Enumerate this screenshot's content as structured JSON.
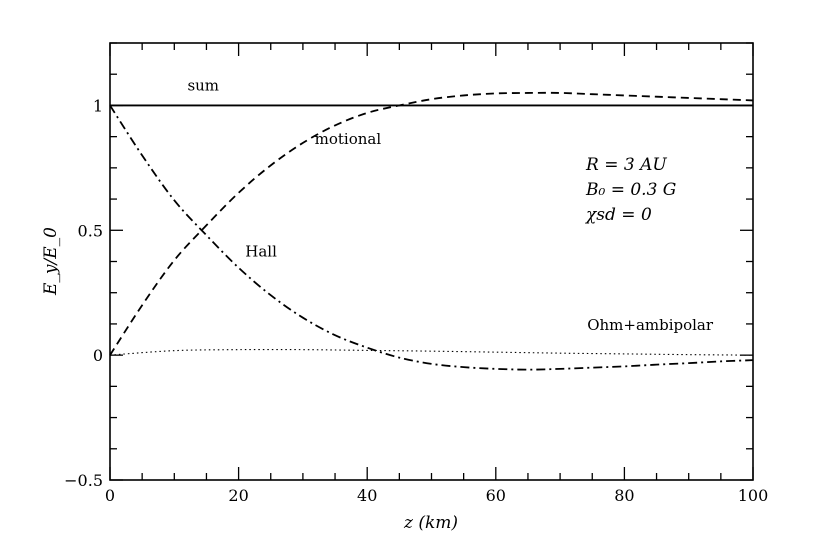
{
  "chart_data": {
    "type": "line",
    "xlabel": "z (km)",
    "ylabel": "E_y/E_0",
    "xlim": [
      0,
      100
    ],
    "ylim": [
      -0.5,
      1.25
    ],
    "x_ticks": [
      0,
      20,
      40,
      60,
      80,
      100
    ],
    "y_ticks": [
      -0.5,
      0,
      0.5,
      1
    ],
    "x_tick_labels": [
      "0",
      "20",
      "40",
      "60",
      "80",
      "100"
    ],
    "y_tick_labels": [
      "−0.5",
      "0",
      "0.5",
      "1"
    ],
    "grid": false,
    "legend": "none",
    "series": [
      {
        "name": "sum",
        "style": "solid",
        "x": [
          0,
          10,
          20,
          30,
          40,
          50,
          60,
          70,
          80,
          90,
          100
        ],
        "y": [
          1.0,
          1.0,
          1.0,
          1.0,
          1.0,
          1.0,
          1.0,
          1.0,
          1.0,
          1.0,
          1.0
        ]
      },
      {
        "name": "motional",
        "style": "dashed",
        "x": [
          0,
          5,
          10,
          15,
          20,
          25,
          30,
          35,
          40,
          45,
          50,
          55,
          60,
          65,
          70,
          75,
          80,
          85,
          90,
          95,
          100
        ],
        "y": [
          0.0,
          0.2,
          0.38,
          0.52,
          0.65,
          0.76,
          0.85,
          0.92,
          0.97,
          1.0,
          1.025,
          1.04,
          1.048,
          1.05,
          1.05,
          1.045,
          1.04,
          1.035,
          1.03,
          1.025,
          1.02
        ]
      },
      {
        "name": "Hall",
        "style": "dashdot",
        "x": [
          0,
          5,
          10,
          15,
          20,
          25,
          30,
          35,
          40,
          45,
          50,
          55,
          60,
          65,
          70,
          75,
          80,
          85,
          90,
          95,
          100
        ],
        "y": [
          1.0,
          0.8,
          0.62,
          0.48,
          0.35,
          0.24,
          0.15,
          0.08,
          0.03,
          -0.01,
          -0.035,
          -0.048,
          -0.055,
          -0.058,
          -0.055,
          -0.05,
          -0.045,
          -0.038,
          -0.032,
          -0.025,
          -0.02
        ]
      },
      {
        "name": "Ohm+ambipolar",
        "style": "dotted",
        "x": [
          0,
          10,
          20,
          30,
          40,
          50,
          60,
          70,
          80,
          90,
          100
        ],
        "y": [
          0.0,
          0.018,
          0.022,
          0.022,
          0.019,
          0.016,
          0.012,
          0.008,
          0.005,
          0.002,
          0.0
        ]
      }
    ],
    "labels": [
      {
        "text": "sum",
        "x": 14.5,
        "y": 1.06
      },
      {
        "text": "motional",
        "x": 37,
        "y": 0.845
      },
      {
        "text": "Hall",
        "x": 23.5,
        "y": 0.395
      },
      {
        "text": "Ohm+ambipolar",
        "x": 84,
        "y": 0.1
      }
    ],
    "annotations": [
      {
        "text": "R = 3 AU"
      },
      {
        "text": "B₀ = 0.3 G"
      },
      {
        "text": "χsd = 0"
      }
    ]
  }
}
